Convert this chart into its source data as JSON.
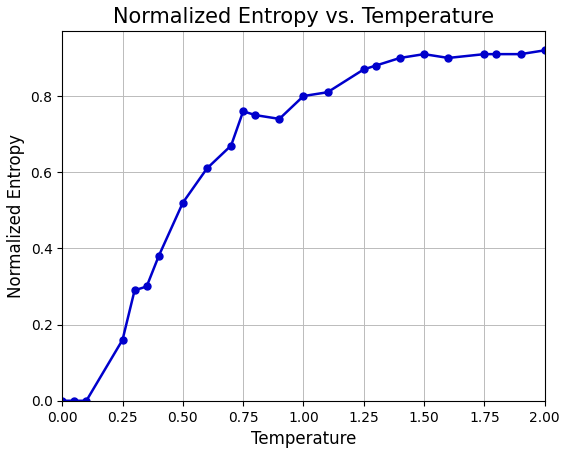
{
  "title": "Normalized Entropy vs. Temperature",
  "xlabel": "Temperature",
  "ylabel": "Normalized Entropy",
  "line_color": "#0000cc",
  "marker": "o",
  "marker_color": "#0000cc",
  "x": [
    0.0,
    0.05,
    0.1,
    0.25,
    0.3,
    0.35,
    0.4,
    0.5,
    0.6,
    0.7,
    0.75,
    0.8,
    0.9,
    1.0,
    1.1,
    1.25,
    1.3,
    1.4,
    1.5,
    1.6,
    1.75,
    1.8,
    1.9,
    2.0
  ],
  "y": [
    0.0,
    0.0,
    0.0,
    0.16,
    0.29,
    0.3,
    0.38,
    0.52,
    0.61,
    0.67,
    0.76,
    0.75,
    0.74,
    0.8,
    0.81,
    0.87,
    0.88,
    0.9,
    0.91,
    0.9,
    0.91,
    0.91,
    0.91,
    0.92
  ],
  "xlim": [
    0.0,
    2.0
  ],
  "ylim": [
    0.0,
    0.97
  ],
  "yticks": [
    0.0,
    0.2,
    0.4,
    0.6,
    0.8
  ],
  "xticks": [
    0.0,
    0.25,
    0.5,
    0.75,
    1.0,
    1.25,
    1.5,
    1.75,
    2.0
  ],
  "grid": true,
  "title_fontsize": 15,
  "label_fontsize": 12,
  "tick_fontsize": 10,
  "figwidth": 5.67,
  "figheight": 4.55,
  "dpi": 100
}
